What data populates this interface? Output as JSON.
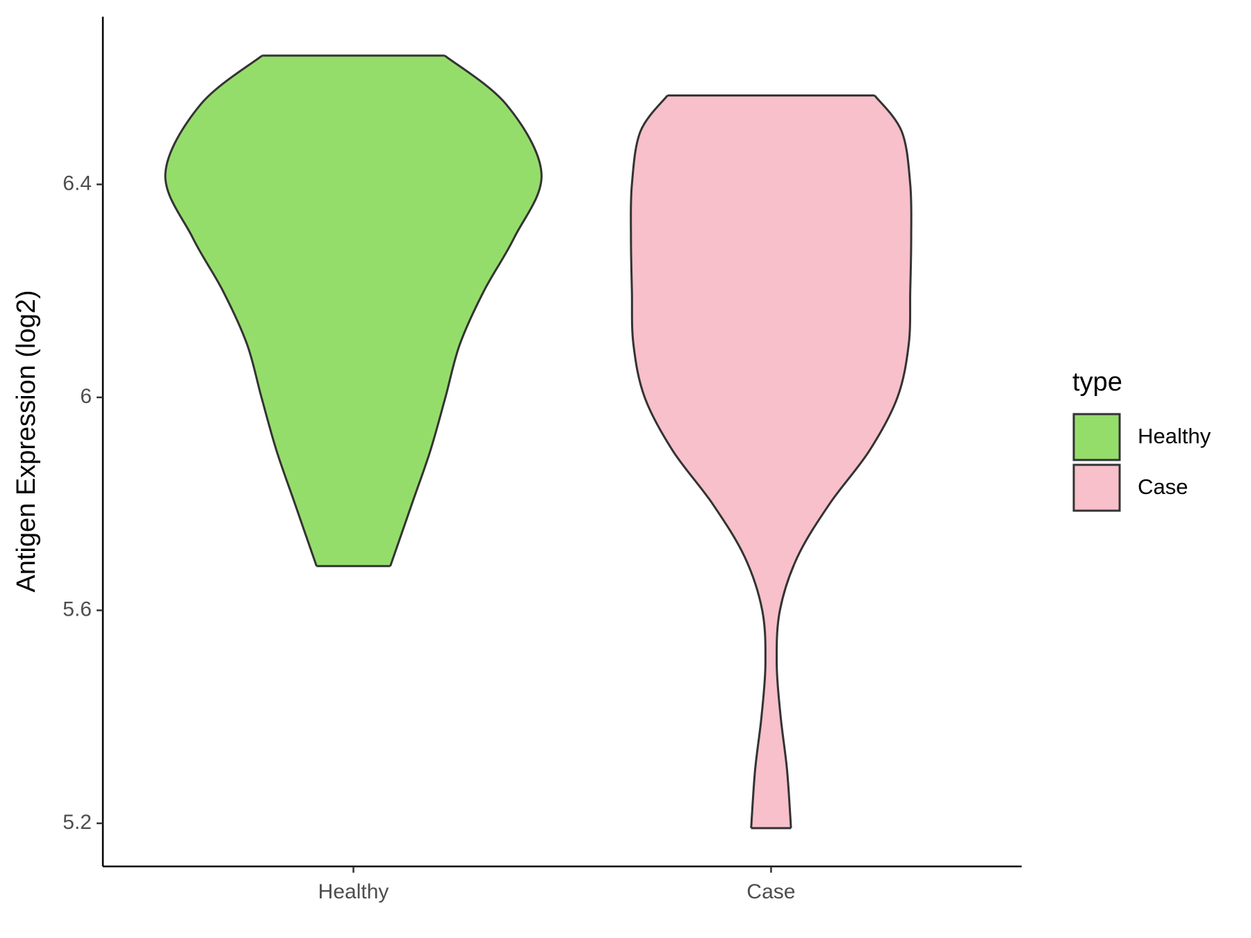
{
  "chart_data": {
    "type": "violin",
    "y_label": "Antigen Expression (log2)",
    "categories": [
      "Healthy",
      "Case"
    ],
    "legend_title": "type",
    "legend_position": "right",
    "ylim": [
      5.119,
      6.715
    ],
    "yticks": [
      5.2,
      5.6,
      6.0,
      6.4
    ],
    "series": [
      {
        "name": "Healthy",
        "color": "#95dd6b",
        "y": [
          6.642,
          6.55,
          6.42,
          6.3,
          6.2,
          6.1,
          6.0,
          5.9,
          5.8,
          5.683
        ],
        "density": [
          0.485,
          0.813,
          1.0,
          0.855,
          0.694,
          0.566,
          0.489,
          0.409,
          0.311,
          0.196
        ]
      },
      {
        "name": "Case",
        "color": "#f7c0cb",
        "y": [
          6.567,
          6.5,
          6.4,
          6.3,
          6.2,
          6.1,
          6.0,
          5.9,
          5.8,
          5.7,
          5.6,
          5.5,
          5.4,
          5.3,
          5.191
        ],
        "density": [
          0.551,
          0.694,
          0.74,
          0.745,
          0.74,
          0.732,
          0.672,
          0.523,
          0.311,
          0.14,
          0.047,
          0.03,
          0.051,
          0.085,
          0.106
        ]
      }
    ]
  }
}
